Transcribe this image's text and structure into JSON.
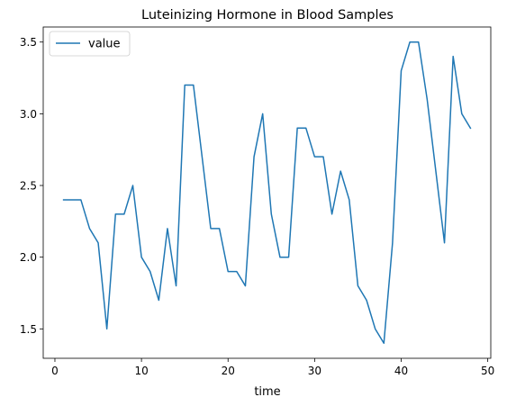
{
  "chart_data": {
    "type": "line",
    "title": "Luteinizing Hormone in Blood Samples",
    "xlabel": "time",
    "ylabel": "",
    "xlim": [
      -1.35,
      50.35
    ],
    "ylim": [
      1.295,
      3.605
    ],
    "x_ticks": [
      0,
      10,
      20,
      30,
      40,
      50
    ],
    "y_ticks": [
      1.5,
      2.0,
      2.5,
      3.0,
      3.5
    ],
    "x_tick_labels": [
      "0",
      "10",
      "20",
      "30",
      "40",
      "50"
    ],
    "y_tick_labels": [
      "1.5",
      "2.0",
      "2.5",
      "3.0",
      "3.5"
    ],
    "grid": false,
    "legend": {
      "position": "top-left"
    },
    "series": [
      {
        "name": "value",
        "color": "#1f77b4",
        "x": [
          1,
          2,
          3,
          4,
          5,
          6,
          7,
          8,
          9,
          10,
          11,
          12,
          13,
          14,
          15,
          16,
          17,
          18,
          19,
          20,
          21,
          22,
          23,
          24,
          25,
          26,
          27,
          28,
          29,
          30,
          31,
          32,
          33,
          34,
          35,
          36,
          37,
          38,
          39,
          40,
          41,
          42,
          43,
          44,
          45,
          46,
          47,
          48
        ],
        "values": [
          2.4,
          2.4,
          2.4,
          2.2,
          2.1,
          1.5,
          2.3,
          2.3,
          2.5,
          2.0,
          1.9,
          1.7,
          2.2,
          1.8,
          3.2,
          3.2,
          2.7,
          2.2,
          2.2,
          1.9,
          1.9,
          1.8,
          2.7,
          3.0,
          2.3,
          2.0,
          2.0,
          2.9,
          2.9,
          2.7,
          2.7,
          2.3,
          2.6,
          2.4,
          1.8,
          1.7,
          1.5,
          1.4,
          2.1,
          3.3,
          3.5,
          3.5,
          3.1,
          2.6,
          2.1,
          3.4,
          3.0,
          2.9
        ]
      }
    ]
  }
}
